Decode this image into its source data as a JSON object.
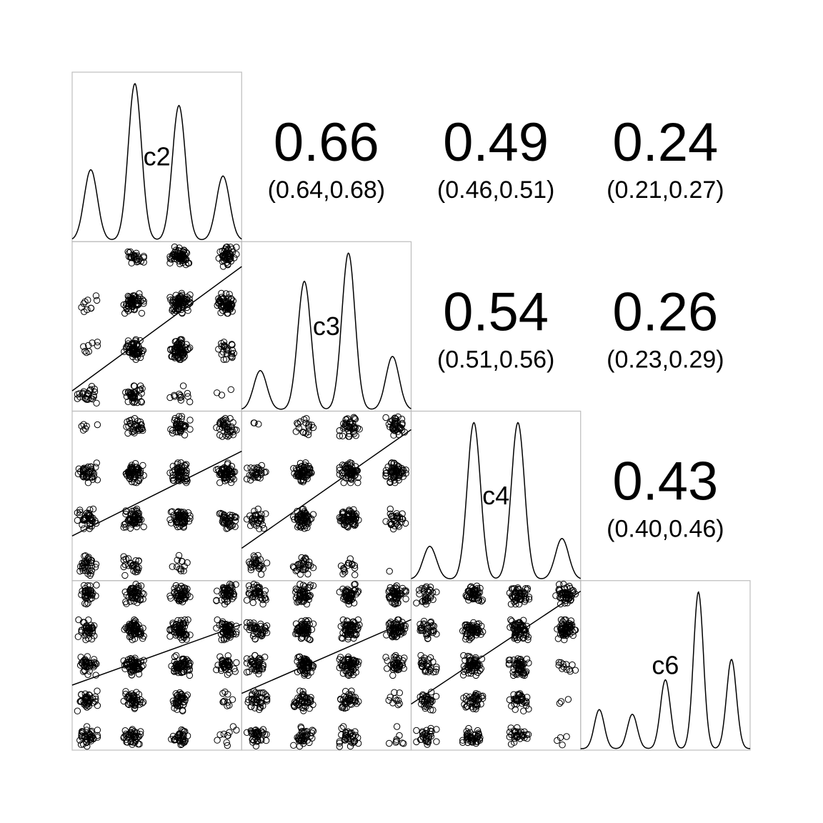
{
  "chart_data": {
    "type": "scatter",
    "title": "",
    "variables": [
      "c2",
      "c3",
      "c4",
      "c6"
    ],
    "densities": [
      {
        "variable": "c2",
        "levels": [
          1,
          2,
          3,
          4
        ],
        "peaks": [
          0.45,
          1.0,
          0.86,
          0.41
        ]
      },
      {
        "variable": "c3",
        "levels": [
          1,
          2,
          3,
          4
        ],
        "peaks": [
          0.25,
          0.82,
          1.0,
          0.34
        ]
      },
      {
        "variable": "c4",
        "levels": [
          1,
          2,
          3,
          4
        ],
        "peaks": [
          0.21,
          1.0,
          1.0,
          0.26
        ]
      },
      {
        "variable": "c6",
        "levels": [
          1,
          2,
          3,
          4,
          5
        ],
        "peaks": [
          0.25,
          0.22,
          0.44,
          1.0,
          0.57
        ]
      }
    ],
    "correlations": [
      {
        "x": "c2",
        "y": "c3",
        "r": "0.66",
        "ci": "(0.64,0.68)"
      },
      {
        "x": "c2",
        "y": "c4",
        "r": "0.49",
        "ci": "(0.46,0.51)"
      },
      {
        "x": "c2",
        "y": "c6",
        "r": "0.24",
        "ci": "(0.21,0.27)"
      },
      {
        "x": "c3",
        "y": "c4",
        "r": "0.54",
        "ci": "(0.51,0.56)"
      },
      {
        "x": "c3",
        "y": "c6",
        "r": "0.26",
        "ci": "(0.23,0.29)"
      },
      {
        "x": "c4",
        "y": "c6",
        "r": "0.43",
        "ci": "(0.40,0.46)"
      }
    ],
    "scatter": [
      {
        "x": "c2",
        "y": "c3",
        "counts": [
          [
            25,
            40,
            12,
            3
          ],
          [
            8,
            60,
            70,
            25
          ],
          [
            10,
            60,
            70,
            60
          ],
          [
            0,
            25,
            60,
            50
          ]
        ]
      },
      {
        "x": "c2",
        "y": "c4",
        "counts": [
          [
            35,
            25,
            12,
            0
          ],
          [
            40,
            60,
            60,
            40
          ],
          [
            40,
            60,
            60,
            60
          ],
          [
            6,
            30,
            40,
            40
          ]
        ]
      },
      {
        "x": "c3",
        "y": "c4",
        "counts": [
          [
            30,
            30,
            15,
            1
          ],
          [
            30,
            60,
            60,
            30
          ],
          [
            30,
            60,
            60,
            60
          ],
          [
            3,
            18,
            40,
            40
          ]
        ]
      },
      {
        "x": "c2",
        "y": "c6",
        "counts": [
          [
            40,
            40,
            35,
            10
          ],
          [
            40,
            45,
            40,
            10
          ],
          [
            40,
            60,
            60,
            40
          ],
          [
            40,
            60,
            60,
            60
          ],
          [
            40,
            50,
            50,
            50
          ]
        ]
      },
      {
        "x": "c3",
        "y": "c6",
        "counts": [
          [
            40,
            40,
            35,
            8
          ],
          [
            40,
            45,
            40,
            10
          ],
          [
            40,
            60,
            60,
            40
          ],
          [
            40,
            60,
            60,
            60
          ],
          [
            40,
            50,
            50,
            50
          ]
        ]
      },
      {
        "x": "c4",
        "y": "c6",
        "counts": [
          [
            30,
            40,
            30,
            4
          ],
          [
            30,
            40,
            40,
            3
          ],
          [
            30,
            60,
            60,
            12
          ],
          [
            30,
            60,
            60,
            60
          ],
          [
            30,
            50,
            50,
            50
          ]
        ]
      }
    ],
    "fit_lines": [
      {
        "x": "c2",
        "y": "c3",
        "y_at_min": 1.35,
        "y_at_max": 3.55
      },
      {
        "x": "c2",
        "y": "c4",
        "y_at_min": 1.8,
        "y_at_max": 3.3
      },
      {
        "x": "c3",
        "y": "c4",
        "y_at_min": 1.6,
        "y_at_max": 3.7
      },
      {
        "x": "c2",
        "y": "c6",
        "y_at_min": 2.6,
        "y_at_max": 4.0
      },
      {
        "x": "c3",
        "y": "c6",
        "y_at_min": 2.4,
        "y_at_max": 4.1
      },
      {
        "x": "c4",
        "y": "c6",
        "y_at_min": 2.2,
        "y_at_max": 4.8
      }
    ],
    "grid": false,
    "legend": "none"
  }
}
